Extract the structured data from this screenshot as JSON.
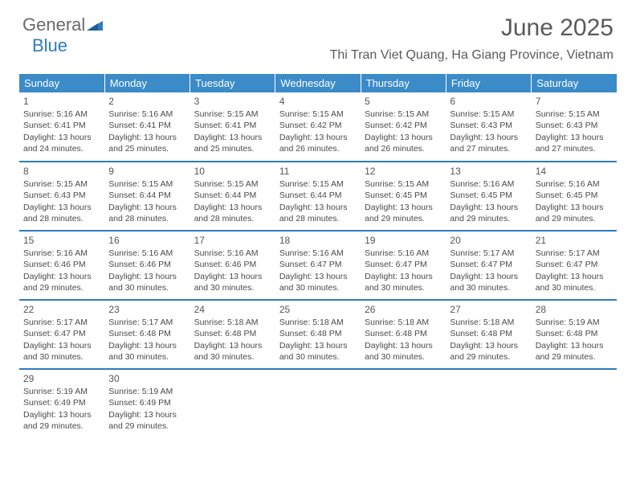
{
  "logo": {
    "general": "General",
    "blue": "Blue"
  },
  "title": "June 2025",
  "location": "Thi Tran Viet Quang, Ha Giang Province, Vietnam",
  "colors": {
    "header_bg": "#3b8bc8",
    "header_text": "#ffffff",
    "row_divider": "#2f7bbf",
    "body_text": "#4a4a4a",
    "logo_gray": "#6a6a6a",
    "logo_blue": "#2f7bbf",
    "background": "#ffffff"
  },
  "day_headers": [
    "Sunday",
    "Monday",
    "Tuesday",
    "Wednesday",
    "Thursday",
    "Friday",
    "Saturday"
  ],
  "weeks": [
    [
      {
        "n": "1",
        "sr": "5:16 AM",
        "ss": "6:41 PM",
        "dl": "13 hours and 24 minutes."
      },
      {
        "n": "2",
        "sr": "5:16 AM",
        "ss": "6:41 PM",
        "dl": "13 hours and 25 minutes."
      },
      {
        "n": "3",
        "sr": "5:15 AM",
        "ss": "6:41 PM",
        "dl": "13 hours and 25 minutes."
      },
      {
        "n": "4",
        "sr": "5:15 AM",
        "ss": "6:42 PM",
        "dl": "13 hours and 26 minutes."
      },
      {
        "n": "5",
        "sr": "5:15 AM",
        "ss": "6:42 PM",
        "dl": "13 hours and 26 minutes."
      },
      {
        "n": "6",
        "sr": "5:15 AM",
        "ss": "6:43 PM",
        "dl": "13 hours and 27 minutes."
      },
      {
        "n": "7",
        "sr": "5:15 AM",
        "ss": "6:43 PM",
        "dl": "13 hours and 27 minutes."
      }
    ],
    [
      {
        "n": "8",
        "sr": "5:15 AM",
        "ss": "6:43 PM",
        "dl": "13 hours and 28 minutes."
      },
      {
        "n": "9",
        "sr": "5:15 AM",
        "ss": "6:44 PM",
        "dl": "13 hours and 28 minutes."
      },
      {
        "n": "10",
        "sr": "5:15 AM",
        "ss": "6:44 PM",
        "dl": "13 hours and 28 minutes."
      },
      {
        "n": "11",
        "sr": "5:15 AM",
        "ss": "6:44 PM",
        "dl": "13 hours and 28 minutes."
      },
      {
        "n": "12",
        "sr": "5:15 AM",
        "ss": "6:45 PM",
        "dl": "13 hours and 29 minutes."
      },
      {
        "n": "13",
        "sr": "5:16 AM",
        "ss": "6:45 PM",
        "dl": "13 hours and 29 minutes."
      },
      {
        "n": "14",
        "sr": "5:16 AM",
        "ss": "6:45 PM",
        "dl": "13 hours and 29 minutes."
      }
    ],
    [
      {
        "n": "15",
        "sr": "5:16 AM",
        "ss": "6:46 PM",
        "dl": "13 hours and 29 minutes."
      },
      {
        "n": "16",
        "sr": "5:16 AM",
        "ss": "6:46 PM",
        "dl": "13 hours and 30 minutes."
      },
      {
        "n": "17",
        "sr": "5:16 AM",
        "ss": "6:46 PM",
        "dl": "13 hours and 30 minutes."
      },
      {
        "n": "18",
        "sr": "5:16 AM",
        "ss": "6:47 PM",
        "dl": "13 hours and 30 minutes."
      },
      {
        "n": "19",
        "sr": "5:16 AM",
        "ss": "6:47 PM",
        "dl": "13 hours and 30 minutes."
      },
      {
        "n": "20",
        "sr": "5:17 AM",
        "ss": "6:47 PM",
        "dl": "13 hours and 30 minutes."
      },
      {
        "n": "21",
        "sr": "5:17 AM",
        "ss": "6:47 PM",
        "dl": "13 hours and 30 minutes."
      }
    ],
    [
      {
        "n": "22",
        "sr": "5:17 AM",
        "ss": "6:47 PM",
        "dl": "13 hours and 30 minutes."
      },
      {
        "n": "23",
        "sr": "5:17 AM",
        "ss": "6:48 PM",
        "dl": "13 hours and 30 minutes."
      },
      {
        "n": "24",
        "sr": "5:18 AM",
        "ss": "6:48 PM",
        "dl": "13 hours and 30 minutes."
      },
      {
        "n": "25",
        "sr": "5:18 AM",
        "ss": "6:48 PM",
        "dl": "13 hours and 30 minutes."
      },
      {
        "n": "26",
        "sr": "5:18 AM",
        "ss": "6:48 PM",
        "dl": "13 hours and 30 minutes."
      },
      {
        "n": "27",
        "sr": "5:18 AM",
        "ss": "6:48 PM",
        "dl": "13 hours and 29 minutes."
      },
      {
        "n": "28",
        "sr": "5:19 AM",
        "ss": "6:48 PM",
        "dl": "13 hours and 29 minutes."
      }
    ],
    [
      {
        "n": "29",
        "sr": "5:19 AM",
        "ss": "6:49 PM",
        "dl": "13 hours and 29 minutes."
      },
      {
        "n": "30",
        "sr": "5:19 AM",
        "ss": "6:49 PM",
        "dl": "13 hours and 29 minutes."
      },
      null,
      null,
      null,
      null,
      null
    ]
  ],
  "labels": {
    "sunrise": "Sunrise:",
    "sunset": "Sunset:",
    "daylight": "Daylight:"
  }
}
